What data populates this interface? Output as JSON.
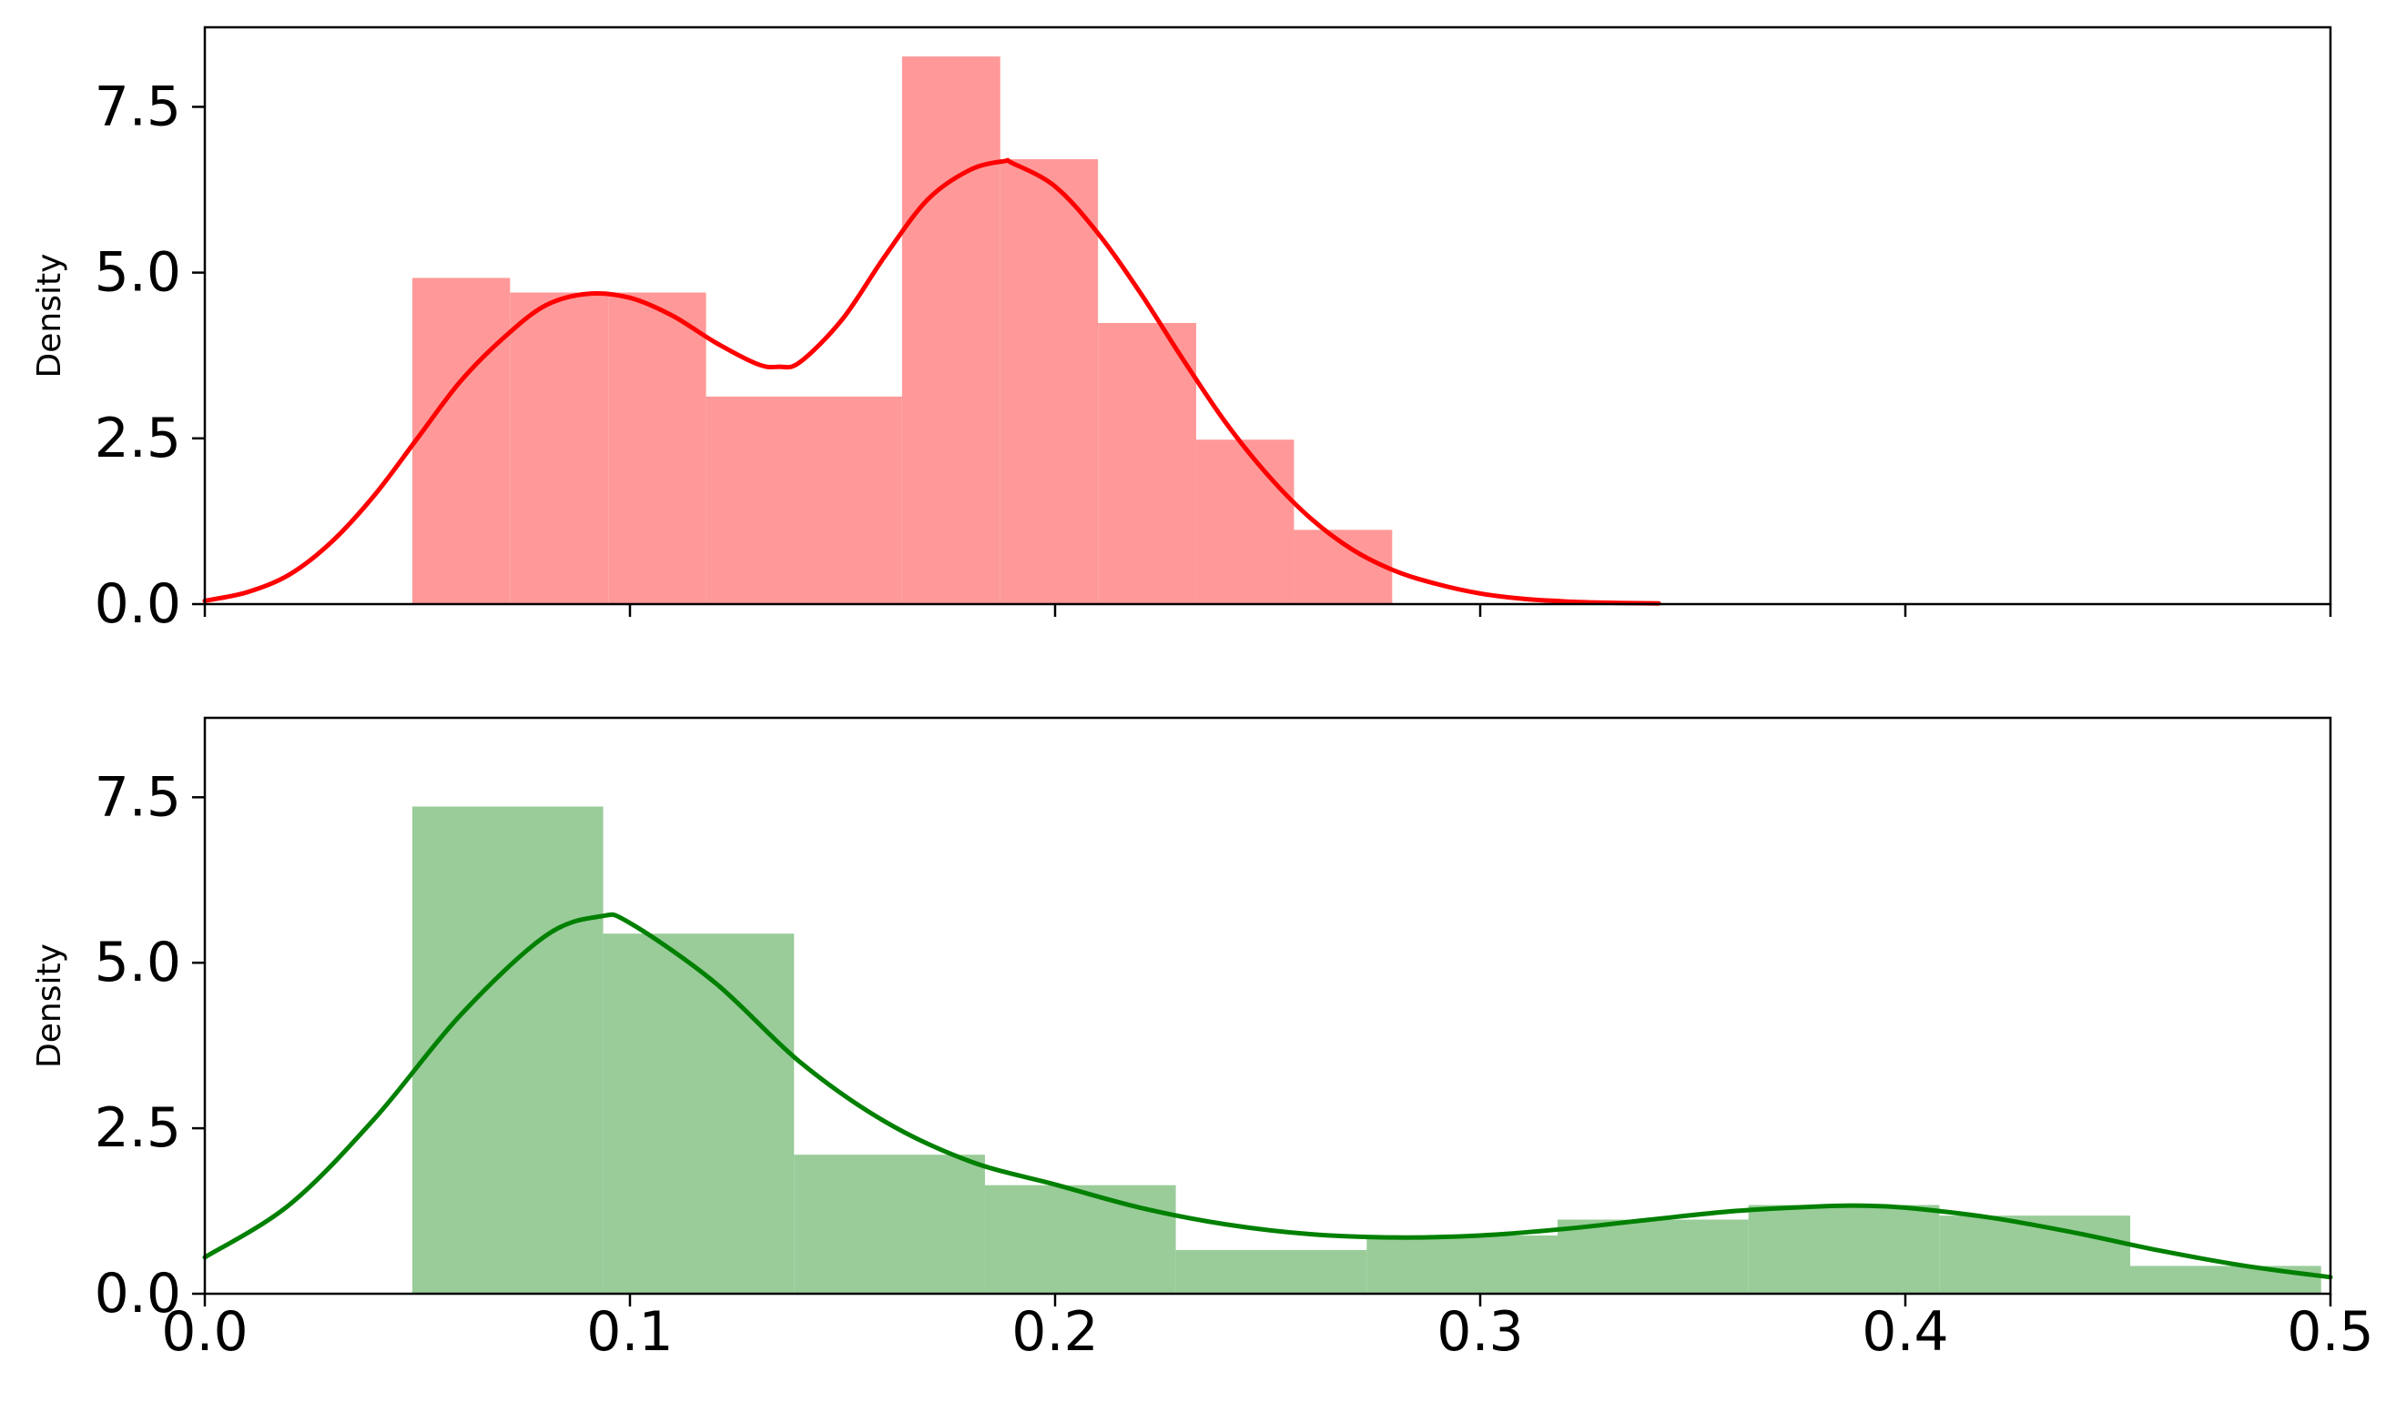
{
  "figure": {
    "background": "#ffffff"
  },
  "chart_data": [
    {
      "type": "bar",
      "ylabel": "Density",
      "xlim": [
        0.0,
        0.5
      ],
      "ylim": [
        0.0,
        8.7
      ],
      "yticks": [
        "0.0",
        "2.5",
        "5.0",
        "7.5"
      ],
      "xticks": [
        0.0,
        0.1,
        0.2,
        0.3,
        0.4,
        0.5
      ],
      "show_xtick_labels": false,
      "bar_color": "#ff9999",
      "line_color": "#ff0000",
      "histogram": {
        "bin_edges": [
          0.0488,
          0.0718,
          0.0949,
          0.1179,
          0.141,
          0.164,
          0.1871,
          0.2101,
          0.2332,
          0.2562,
          0.2793
        ],
        "density": [
          4.92,
          4.7,
          4.7,
          3.13,
          3.13,
          8.26,
          6.71,
          4.24,
          2.48,
          1.12
        ]
      },
      "kde": {
        "x": [
          0.0,
          0.01,
          0.02,
          0.03,
          0.04,
          0.05,
          0.06,
          0.07,
          0.08,
          0.09,
          0.1,
          0.11,
          0.12,
          0.13,
          0.135,
          0.14,
          0.15,
          0.16,
          0.17,
          0.18,
          0.188,
          0.19,
          0.2,
          0.21,
          0.22,
          0.23,
          0.24,
          0.25,
          0.26,
          0.27,
          0.28,
          0.29,
          0.3,
          0.31,
          0.32,
          0.33,
          0.342
        ],
        "y": [
          0.05,
          0.18,
          0.45,
          0.95,
          1.65,
          2.5,
          3.35,
          4.0,
          4.5,
          4.68,
          4.62,
          4.35,
          3.95,
          3.62,
          3.58,
          3.65,
          4.3,
          5.25,
          6.1,
          6.55,
          6.68,
          6.65,
          6.3,
          5.6,
          4.7,
          3.7,
          2.75,
          1.95,
          1.3,
          0.82,
          0.5,
          0.3,
          0.16,
          0.08,
          0.04,
          0.02,
          0.01
        ]
      }
    },
    {
      "type": "bar",
      "ylabel": "Density",
      "xlim": [
        0.0,
        0.5
      ],
      "ylim": [
        0.0,
        8.7
      ],
      "yticks": [
        "0.0",
        "2.5",
        "5.0",
        "7.5"
      ],
      "xticks": [
        0.0,
        0.1,
        0.2,
        0.3,
        0.4,
        0.5
      ],
      "xtick_labels": [
        "0.0",
        "0.1",
        "0.2",
        "0.3",
        "0.4",
        "0.5"
      ],
      "show_xtick_labels": true,
      "bar_color": "#99cc99",
      "line_color": "#008000",
      "histogram": {
        "bin_edges": [
          0.0488,
          0.0937,
          0.1386,
          0.1835,
          0.2284,
          0.2733,
          0.3182,
          0.3631,
          0.408,
          0.4529,
          0.4978
        ],
        "density": [
          7.36,
          5.44,
          2.1,
          1.64,
          0.66,
          0.88,
          1.12,
          1.34,
          1.18,
          0.42
        ]
      },
      "kde": {
        "x": [
          0.0,
          0.02,
          0.04,
          0.06,
          0.08,
          0.093,
          0.1,
          0.12,
          0.14,
          0.16,
          0.18,
          0.2,
          0.22,
          0.24,
          0.26,
          0.28,
          0.3,
          0.32,
          0.34,
          0.36,
          0.38,
          0.39,
          0.4,
          0.42,
          0.44,
          0.46,
          0.48,
          0.5
        ],
        "y": [
          0.55,
          1.35,
          2.65,
          4.2,
          5.4,
          5.7,
          5.6,
          4.7,
          3.5,
          2.6,
          2.0,
          1.65,
          1.3,
          1.05,
          0.9,
          0.85,
          0.88,
          0.98,
          1.12,
          1.25,
          1.32,
          1.33,
          1.3,
          1.15,
          0.92,
          0.65,
          0.42,
          0.25
        ]
      }
    }
  ]
}
